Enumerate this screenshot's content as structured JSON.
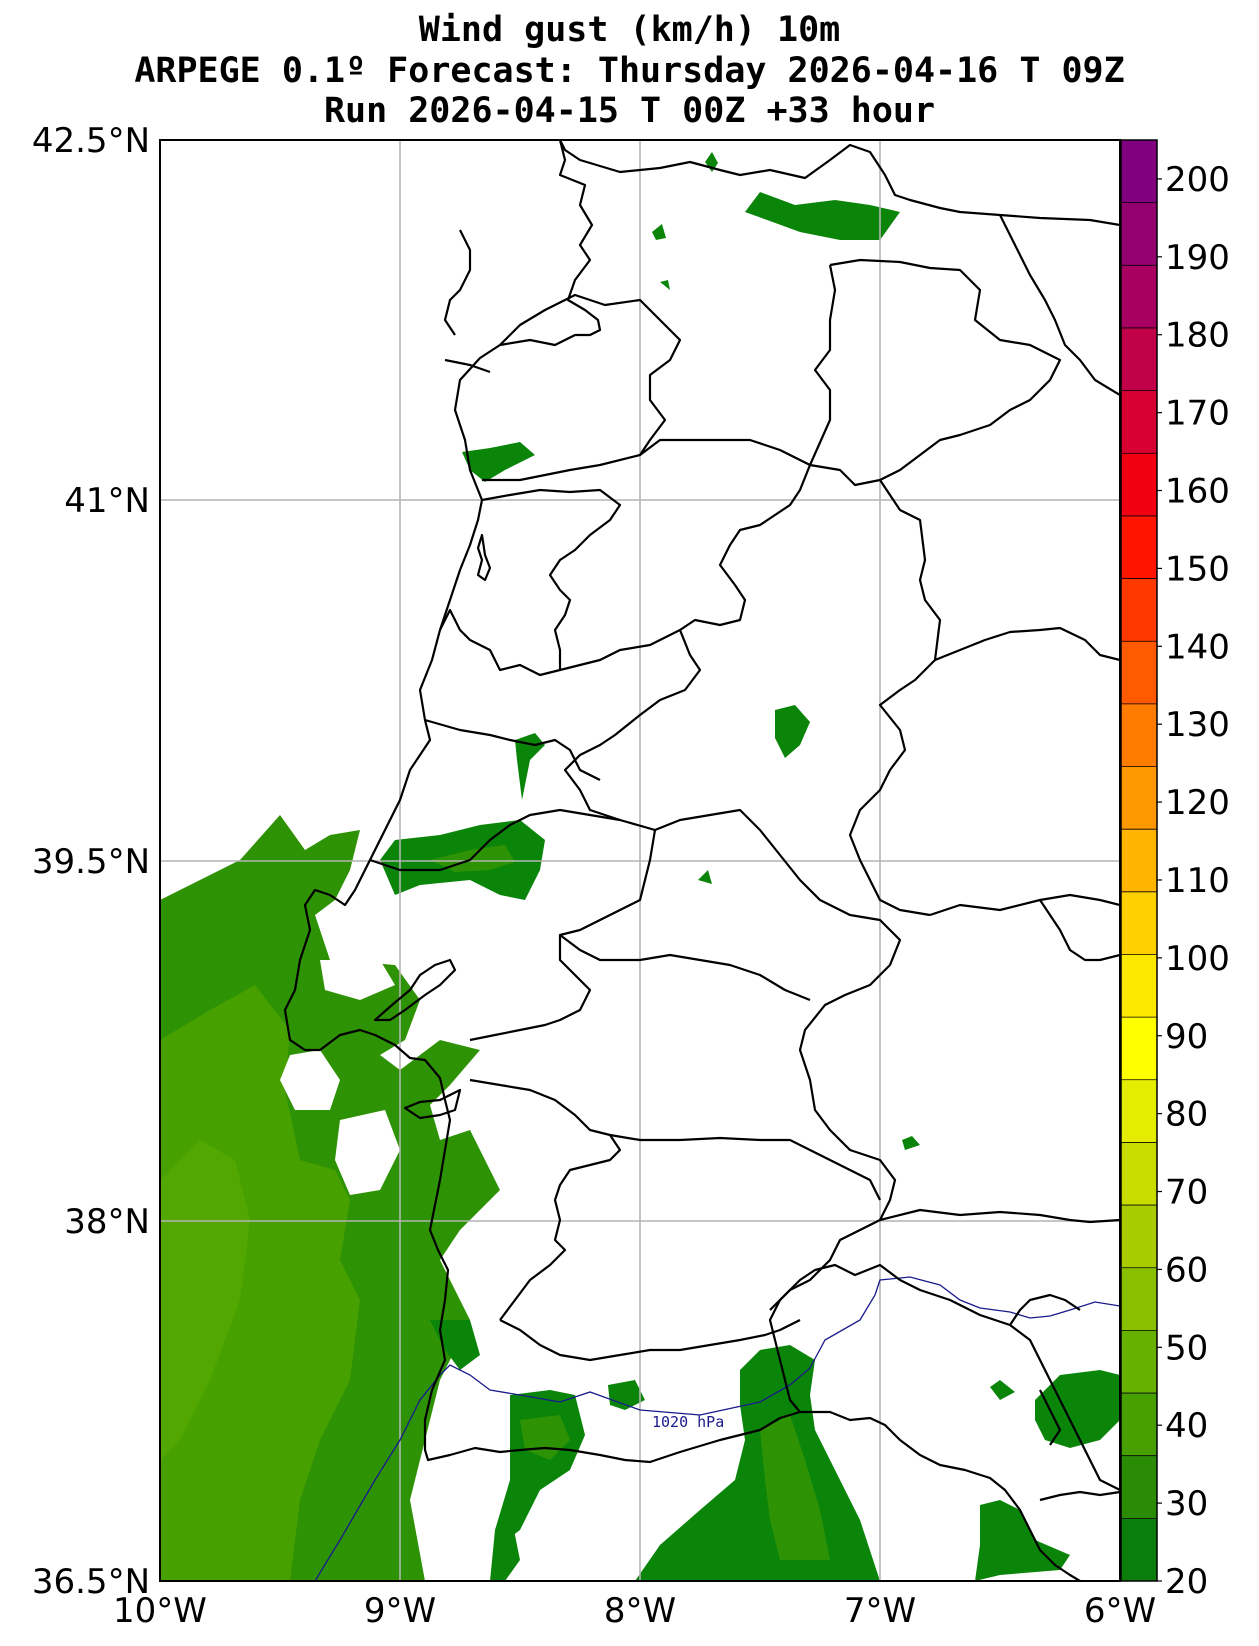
{
  "title": {
    "line1": "Wind gust (km/h) 10m",
    "line2": "ARPEGE 0.1º Forecast: Thursday 2026-04-16 T 09Z",
    "line3": "Run 2026-04-15 T 00Z +33 hour"
  },
  "axes": {
    "lat_labels": [
      "42.5°N",
      "41°N",
      "39.5°N",
      "38°N",
      "36.5°N"
    ],
    "lon_labels": [
      "10°W",
      "9°W",
      "8°W",
      "7°W",
      "6°W"
    ],
    "lon_range": [
      -10,
      -6
    ],
    "lat_range": [
      36.5,
      42.5
    ],
    "grid": true
  },
  "isobar": {
    "label": "1020 hPa",
    "color": "#1a1a8c"
  },
  "colorbar": {
    "min": 20,
    "max": 205,
    "labels": [
      "20",
      "30",
      "40",
      "50",
      "60",
      "70",
      "80",
      "90",
      "100",
      "110",
      "120",
      "130",
      "140",
      "150",
      "160",
      "170",
      "180",
      "190",
      "200"
    ],
    "colors": [
      "#0a7d0a",
      "#2a8c05",
      "#48a000",
      "#66b000",
      "#88c000",
      "#a8cc00",
      "#c8dc00",
      "#e4ec00",
      "#ffff00",
      "#ffe800",
      "#ffd000",
      "#ffb400",
      "#ff9800",
      "#ff7c00",
      "#ff5a00",
      "#ff3800",
      "#ff1400",
      "#f00010",
      "#d80030",
      "#c00048",
      "#a80060",
      "#940070",
      "#800080"
    ]
  },
  "colors": {
    "gust_20_30": "#0a850a",
    "gust_30_40": "#2e9205",
    "gust_40_50": "#46a000",
    "border": "#000000",
    "grid": "#b4b4b4"
  }
}
